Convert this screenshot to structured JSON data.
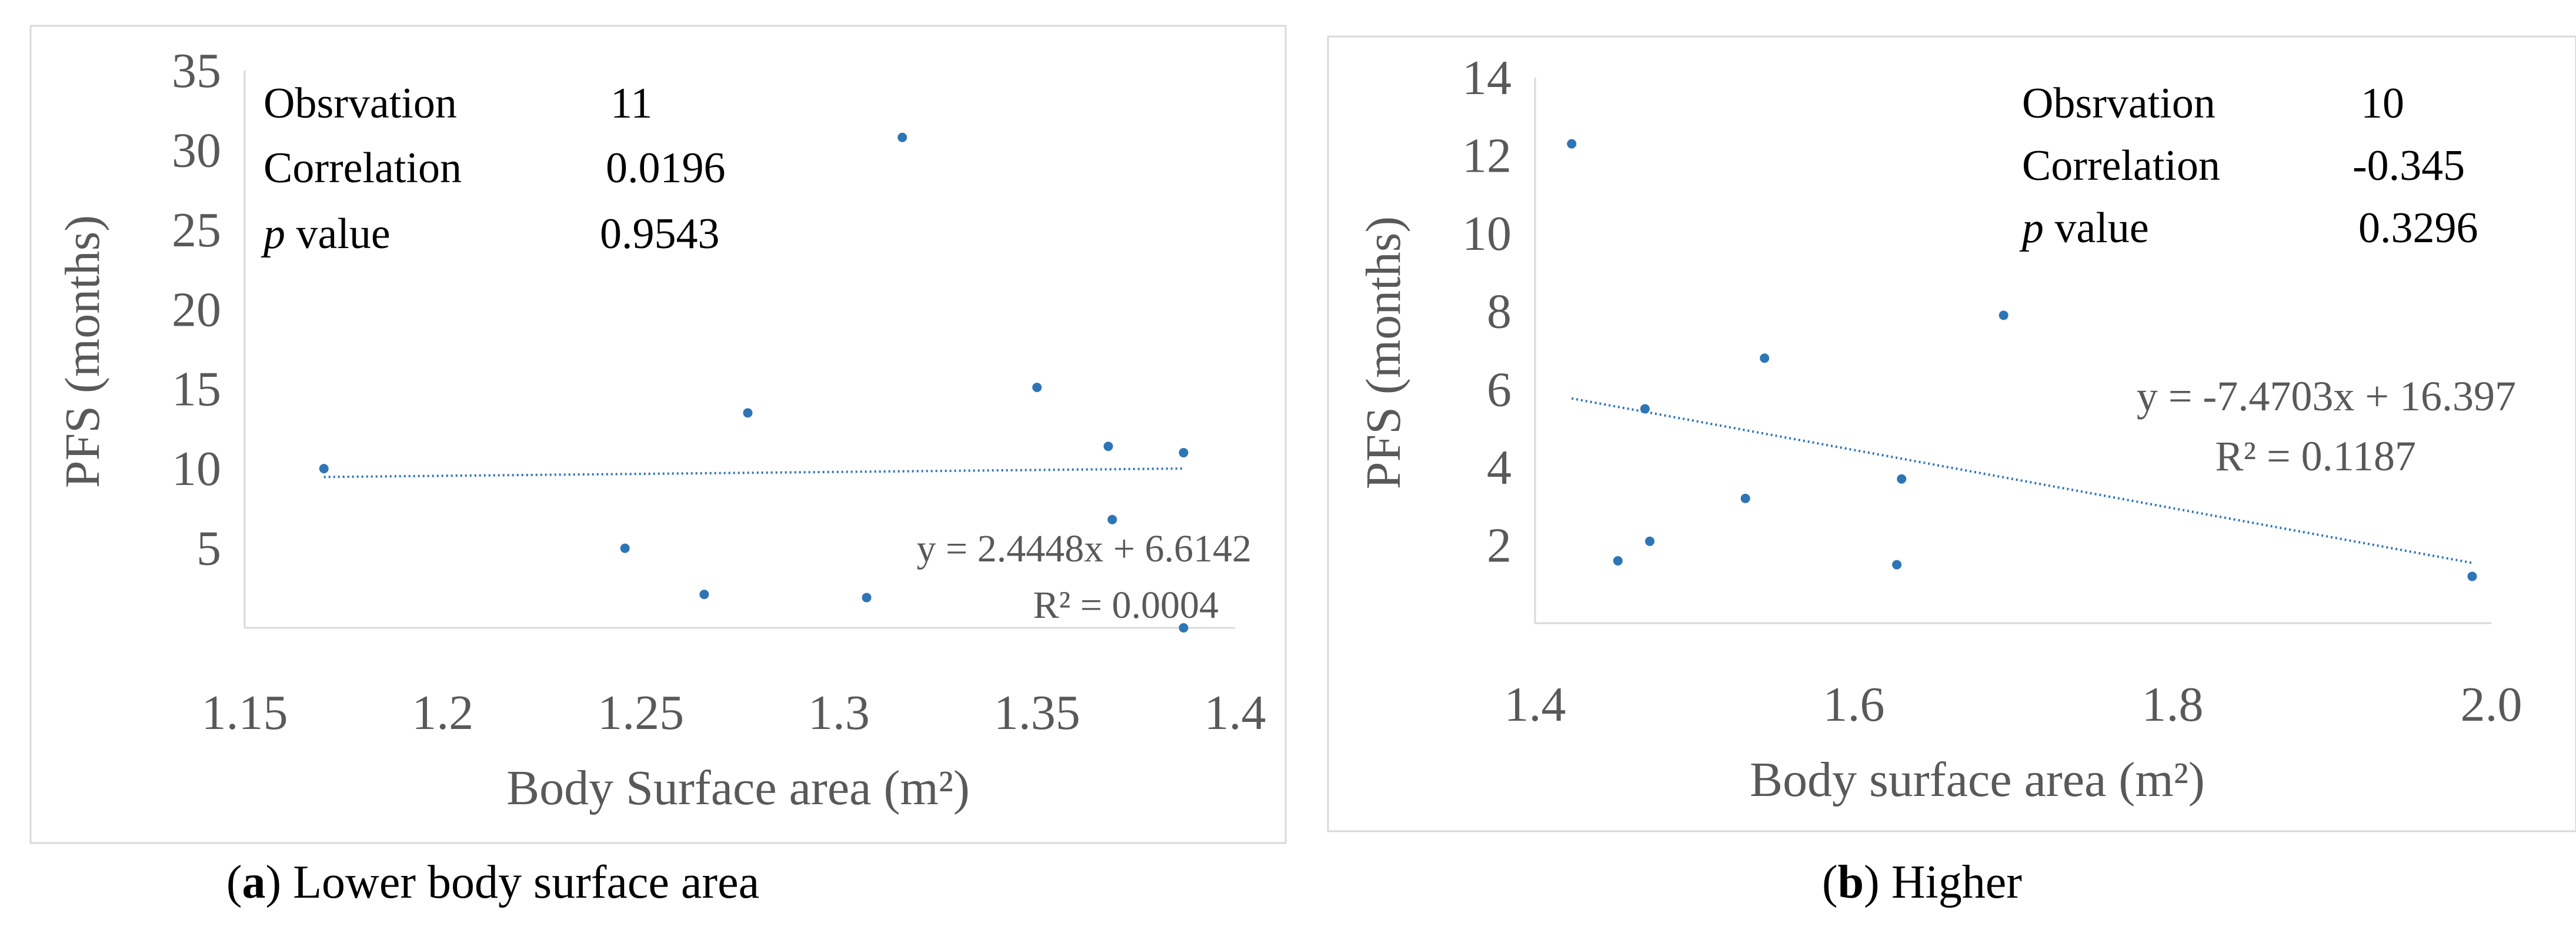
{
  "colors": {
    "point": "#2E75B6",
    "trend": "#2E75B6",
    "axis": "#D9D9D9",
    "frame": "#D9D9D9",
    "text": "#595959",
    "caption": "#000000"
  },
  "captions": [
    {
      "letter": "a",
      "text": " Lower body surface area"
    },
    {
      "letter": "b",
      "text": " Higher"
    }
  ],
  "chart_data": [
    {
      "type": "scatter",
      "title": "",
      "xlabel": "Body Surface area (m²)",
      "ylabel": "PFS (months)",
      "xlim": [
        1.15,
        1.4
      ],
      "ylim": [
        0,
        35
      ],
      "xticks": [
        1.15,
        1.2,
        1.25,
        1.3,
        1.35,
        1.4
      ],
      "xtick_labels": [
        "1.15",
        "1.2",
        "1.25",
        "1.3",
        "1.35",
        "1.4"
      ],
      "yticks": [
        5,
        10,
        15,
        20,
        25,
        30,
        35
      ],
      "ytick_labels": [
        "5",
        "10",
        "15",
        "20",
        "25",
        "30",
        "35"
      ],
      "points": [
        {
          "x": 1.17,
          "y": 10.0
        },
        {
          "x": 1.246,
          "y": 5.0
        },
        {
          "x": 1.266,
          "y": 2.1
        },
        {
          "x": 1.277,
          "y": 13.5
        },
        {
          "x": 1.307,
          "y": 1.9
        },
        {
          "x": 1.316,
          "y": 30.8
        },
        {
          "x": 1.35,
          "y": 15.1
        },
        {
          "x": 1.368,
          "y": 11.4
        },
        {
          "x": 1.369,
          "y": 6.8
        },
        {
          "x": 1.387,
          "y": 11.0
        },
        {
          "x": 1.387,
          "y": 0.0
        }
      ],
      "trendline": {
        "slope": 2.4448,
        "intercept": 6.6142,
        "x_range": [
          1.17,
          1.387
        ]
      },
      "equation": "y = 2.4448x + 6.6142",
      "r_squared": "R² = 0.0004",
      "stats": [
        {
          "label": "Obsrvation",
          "value": "11"
        },
        {
          "label": "Correlation",
          "value": "0.0196"
        },
        {
          "label_italic": "p",
          "label": " value",
          "value": "0.9543"
        }
      ]
    },
    {
      "type": "scatter",
      "title": "",
      "xlabel": "Body surface area (m²)",
      "ylabel": "PFS (months)",
      "xlim": [
        1.4,
        2.0
      ],
      "ylim": [
        0,
        14
      ],
      "xticks": [
        1.4,
        1.6,
        1.8,
        2.0
      ],
      "xtick_labels": [
        "1.4",
        "1.6",
        "1.8",
        "2.0"
      ],
      "yticks": [
        2,
        4,
        6,
        8,
        10,
        12,
        14
      ],
      "ytick_labels": [
        "2",
        "4",
        "6",
        "8",
        "10",
        "12",
        "14"
      ],
      "points": [
        {
          "x": 1.423,
          "y": 12.3
        },
        {
          "x": 1.452,
          "y": 1.6
        },
        {
          "x": 1.469,
          "y": 5.5
        },
        {
          "x": 1.472,
          "y": 2.1
        },
        {
          "x": 1.532,
          "y": 3.2
        },
        {
          "x": 1.544,
          "y": 6.8
        },
        {
          "x": 1.627,
          "y": 1.5
        },
        {
          "x": 1.63,
          "y": 3.7
        },
        {
          "x": 1.694,
          "y": 7.9
        },
        {
          "x": 1.988,
          "y": 1.2
        }
      ],
      "trendline": {
        "slope": -7.4703,
        "intercept": 16.397,
        "x_range": [
          1.423,
          1.988
        ]
      },
      "equation": "y = -7.4703x + 16.397",
      "r_squared": "R² = 0.1187",
      "stats": [
        {
          "label": "Obsrvation",
          "value": "10"
        },
        {
          "label": "Correlation",
          "value": "-0.345"
        },
        {
          "label_italic": "p",
          "label": " value",
          "value": "0.3296"
        }
      ]
    }
  ]
}
